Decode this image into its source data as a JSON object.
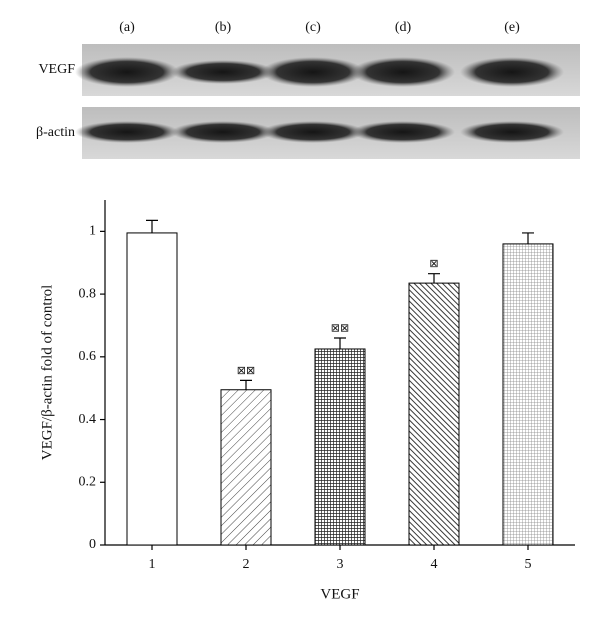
{
  "blot": {
    "lanes": [
      "(a)",
      "(b)",
      "(c)",
      "(d)",
      "(e)"
    ],
    "rows": [
      "VEGF",
      "β-actin"
    ]
  },
  "chart_data": {
    "type": "bar",
    "x_label": "VEGF",
    "y_label": "VEGF/β-actin fold of control",
    "categories": [
      "1",
      "2",
      "3",
      "4",
      "5"
    ],
    "values": [
      0.995,
      0.495,
      0.625,
      0.835,
      0.96
    ],
    "errors": [
      0.04,
      0.03,
      0.035,
      0.03,
      0.035
    ],
    "significance": [
      null,
      "⊠⊠",
      "⊠⊠",
      "⊠",
      null
    ],
    "color": "#000000",
    "ylim": [
      0,
      1.1
    ],
    "yticks": [
      0,
      0.2,
      0.4,
      0.6,
      0.8,
      1
    ],
    "grid": false
  }
}
